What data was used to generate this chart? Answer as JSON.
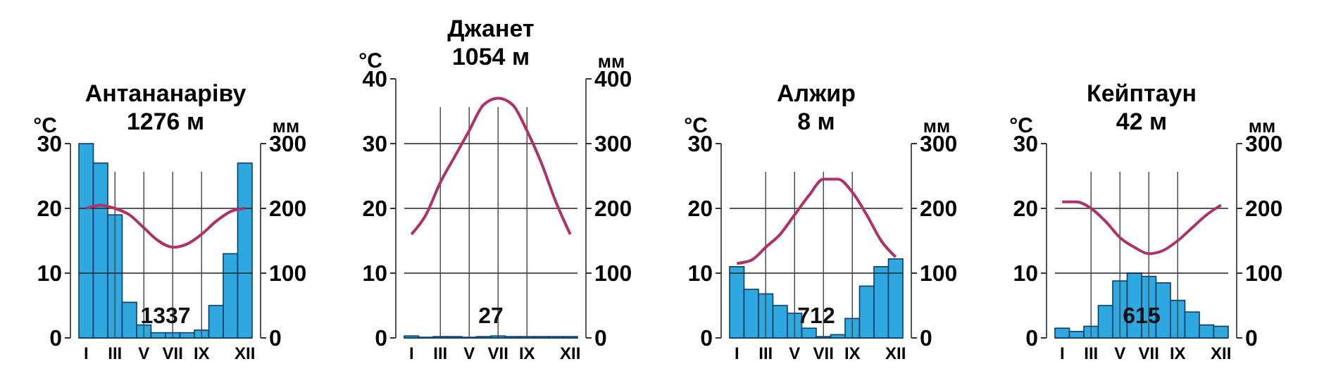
{
  "chart_data": [
    {
      "type": "bar",
      "title": "Антананаріву",
      "subtitle": "1276 м",
      "ylabel": "°C",
      "y2label": "мм",
      "categories": [
        "I",
        null,
        "III",
        null,
        "V",
        null,
        "VII",
        null,
        "IX",
        null,
        null,
        "XII"
      ],
      "ylim": [
        0,
        30
      ],
      "yticks": [
        0,
        10,
        20,
        30
      ],
      "y2lim": [
        0,
        300
      ],
      "y2ticks": [
        0,
        100,
        200,
        300
      ],
      "grid": true,
      "annotations": [
        "1337"
      ],
      "series": [
        {
          "type": "bar",
          "axis": "y2",
          "color": "#2fa7df",
          "values": [
            300,
            270,
            190,
            55,
            20,
            8,
            8,
            8,
            12,
            50,
            130,
            270
          ]
        },
        {
          "type": "line",
          "axis": "y",
          "color": "#b0306a",
          "marker": "none",
          "values": [
            20,
            20.5,
            20,
            19,
            17,
            15,
            14,
            14.5,
            16,
            18,
            19.5,
            20
          ]
        }
      ]
    },
    {
      "type": "bar",
      "title": "Джанет",
      "subtitle": "1054 м",
      "ylabel": "°C",
      "y2label": "мм",
      "categories": [
        "I",
        null,
        "III",
        null,
        "V",
        null,
        "VII",
        null,
        "IX",
        null,
        null,
        "XII"
      ],
      "ylim": [
        0,
        40
      ],
      "yticks": [
        0,
        10,
        20,
        30,
        40
      ],
      "y2lim": [
        0,
        400
      ],
      "y2ticks": [
        0,
        100,
        200,
        300,
        400
      ],
      "grid": true,
      "annotations": [
        "27"
      ],
      "series": [
        {
          "type": "bar",
          "axis": "y2",
          "color": "#2fa7df",
          "values": [
            3,
            1,
            2,
            2,
            1,
            2,
            3,
            2,
            2,
            2,
            2,
            2
          ]
        },
        {
          "type": "line",
          "axis": "y",
          "color": "#b0306a",
          "marker": "none",
          "values": [
            16,
            19,
            24,
            28,
            32,
            36,
            37,
            36,
            32,
            27,
            21,
            16
          ]
        }
      ]
    },
    {
      "type": "bar",
      "title": "Алжир",
      "subtitle": "8 м",
      "ylabel": "°C",
      "y2label": "мм",
      "categories": [
        "I",
        null,
        "III",
        null,
        "V",
        null,
        "VII",
        null,
        "IX",
        null,
        null,
        "XII"
      ],
      "ylim": [
        0,
        30
      ],
      "yticks": [
        0,
        10,
        20,
        30
      ],
      "y2lim": [
        0,
        300
      ],
      "y2ticks": [
        0,
        100,
        200,
        300
      ],
      "grid": true,
      "annotations": [
        "712"
      ],
      "series": [
        {
          "type": "bar",
          "axis": "y2",
          "color": "#2fa7df",
          "values": [
            110,
            75,
            68,
            50,
            38,
            15,
            2,
            5,
            30,
            80,
            110,
            122
          ]
        },
        {
          "type": "line",
          "axis": "y",
          "color": "#b0306a",
          "marker": "none",
          "values": [
            11.5,
            12,
            14,
            16,
            19,
            22,
            24.5,
            24.5,
            22.5,
            19,
            15,
            12.5
          ]
        }
      ]
    },
    {
      "type": "bar",
      "title": "Кейптаун",
      "subtitle": "42 м",
      "ylabel": "°C",
      "y2label": "мм",
      "categories": [
        "I",
        null,
        "III",
        null,
        "V",
        null,
        "VII",
        null,
        "IX",
        null,
        null,
        "XII"
      ],
      "ylim": [
        0,
        30
      ],
      "yticks": [
        0,
        10,
        20,
        30
      ],
      "y2lim": [
        0,
        300
      ],
      "y2ticks": [
        0,
        100,
        200,
        300
      ],
      "grid": true,
      "annotations": [
        "615"
      ],
      "series": [
        {
          "type": "bar",
          "axis": "y2",
          "color": "#2fa7df",
          "values": [
            15,
            10,
            18,
            50,
            88,
            100,
            95,
            85,
            58,
            40,
            20,
            18
          ]
        },
        {
          "type": "line",
          "axis": "y",
          "color": "#b0306a",
          "marker": "none",
          "values": [
            21,
            21,
            20,
            18,
            15.5,
            14,
            13,
            13.5,
            15,
            17,
            19,
            20.5
          ]
        }
      ]
    }
  ]
}
